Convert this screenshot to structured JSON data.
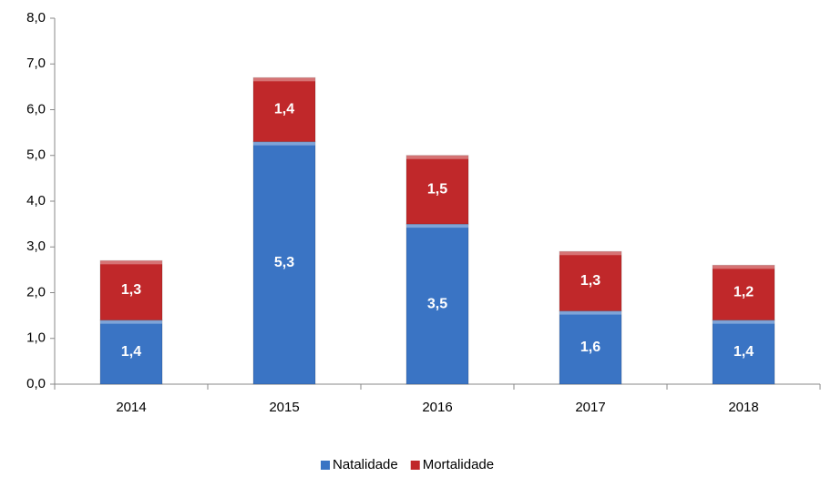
{
  "chart_data": {
    "type": "bar",
    "stacked": true,
    "categories": [
      "2014",
      "2015",
      "2016",
      "2017",
      "2018"
    ],
    "series": [
      {
        "name": "Natalidade",
        "color": "#3a74c4",
        "values": [
          1.4,
          5.3,
          3.5,
          1.6,
          1.4
        ],
        "value_labels": [
          "1,4",
          "5,3",
          "3,5",
          "1,6",
          "1,4"
        ]
      },
      {
        "name": "Mortalidade",
        "color": "#c0282a",
        "values": [
          1.3,
          1.4,
          1.5,
          1.3,
          1.2
        ],
        "value_labels": [
          "1,3",
          "1,4",
          "1,5",
          "1,3",
          "1,2"
        ]
      }
    ],
    "ylim": [
      0,
      8
    ],
    "yticks": [
      {
        "value": 0,
        "label": "0,0"
      },
      {
        "value": 1,
        "label": "1,0"
      },
      {
        "value": 2,
        "label": "2,0"
      },
      {
        "value": 3,
        "label": "3,0"
      },
      {
        "value": 4,
        "label": "4,0"
      },
      {
        "value": 5,
        "label": "5,0"
      },
      {
        "value": 6,
        "label": "6,0"
      },
      {
        "value": 7,
        "label": "7,0"
      },
      {
        "value": 8,
        "label": "8,0"
      }
    ],
    "grid": false,
    "legend": "bottom"
  }
}
